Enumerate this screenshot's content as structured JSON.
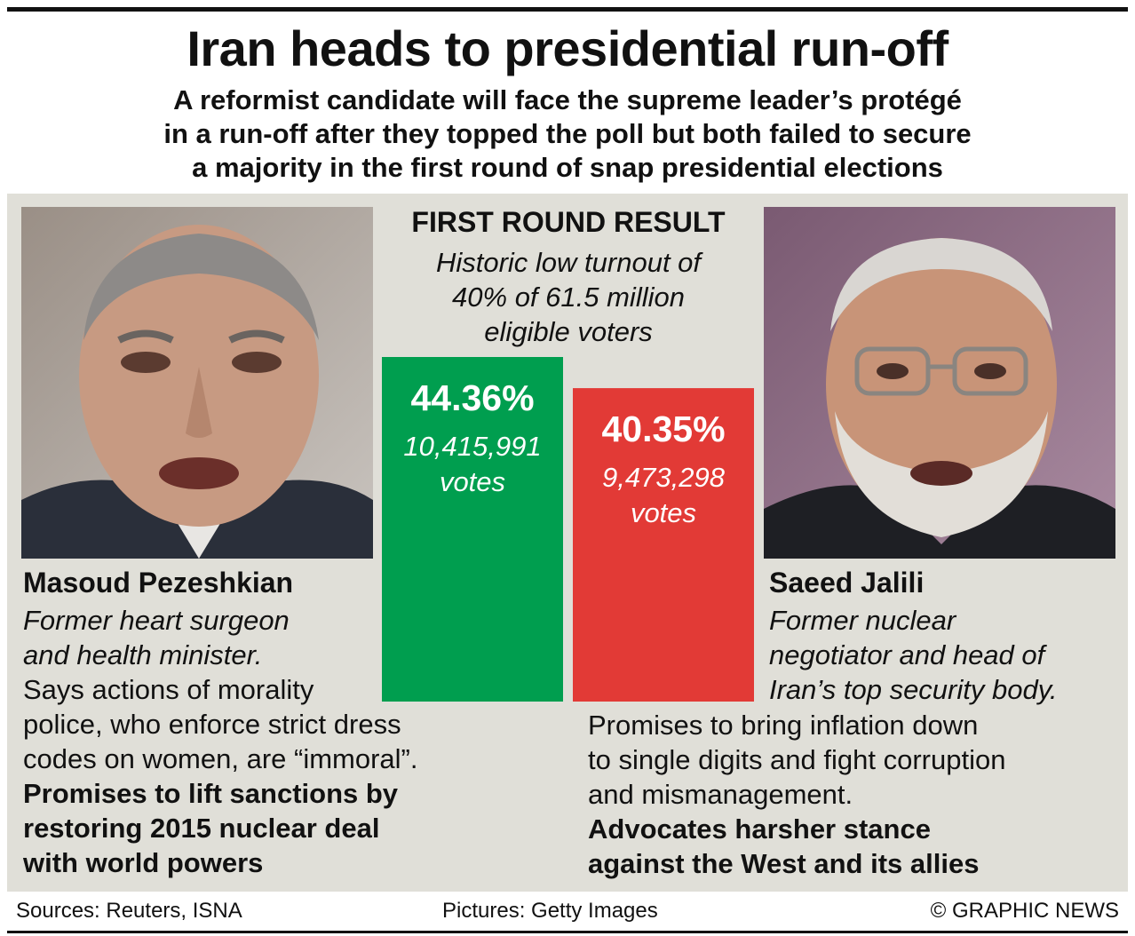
{
  "header": {
    "title": "Iran heads to presidential run-off",
    "subtitle_lines": [
      "A reformist candidate will face the supreme leader’s protégé",
      "in a run-off after they topped the poll but both failed to secure",
      "a majority in the first round of snap presidential elections"
    ]
  },
  "result": {
    "title": "FIRST ROUND RESULT",
    "note_lines": [
      "Historic low turnout of",
      "40% of 61.5 million",
      "eligible voters"
    ]
  },
  "candidates": {
    "left": {
      "name": "Masoud Pezeshkian",
      "role_lines": [
        "Former heart surgeon",
        "and health minister."
      ],
      "plain_lines": [
        "Says actions of morality",
        "police, who enforce strict dress",
        "codes on women, are “immoral”."
      ],
      "bold_lines": [
        "Promises to lift sanctions by",
        "restoring 2015 nuclear deal",
        "with world powers"
      ]
    },
    "right": {
      "name": "Saeed Jalili",
      "role_lines": [
        "Former nuclear",
        "negotiator and head of",
        "Iran’s top security body."
      ],
      "plain_lines": [
        "Promises to bring inflation down",
        "to single digits and fight corruption",
        "and mismanagement."
      ],
      "bold_lines": [
        "Advocates harsher stance",
        "against the West and its allies"
      ]
    }
  },
  "chart_data": {
    "type": "bar",
    "title": "FIRST ROUND RESULT",
    "categories": [
      "Masoud Pezeshkian",
      "Saeed Jalili"
    ],
    "values": [
      44.36,
      40.35
    ],
    "value_labels": [
      "44.36%",
      "40.35%"
    ],
    "votes": [
      "10,415,991",
      "9,473,298"
    ],
    "votes_unit": "votes",
    "colors": [
      "#009e4f",
      "#e23a36"
    ]
  },
  "footer": {
    "sources": "Sources: Reuters, ISNA",
    "pictures": "Pictures: Getty Images",
    "credit": "© GRAPHIC NEWS"
  }
}
